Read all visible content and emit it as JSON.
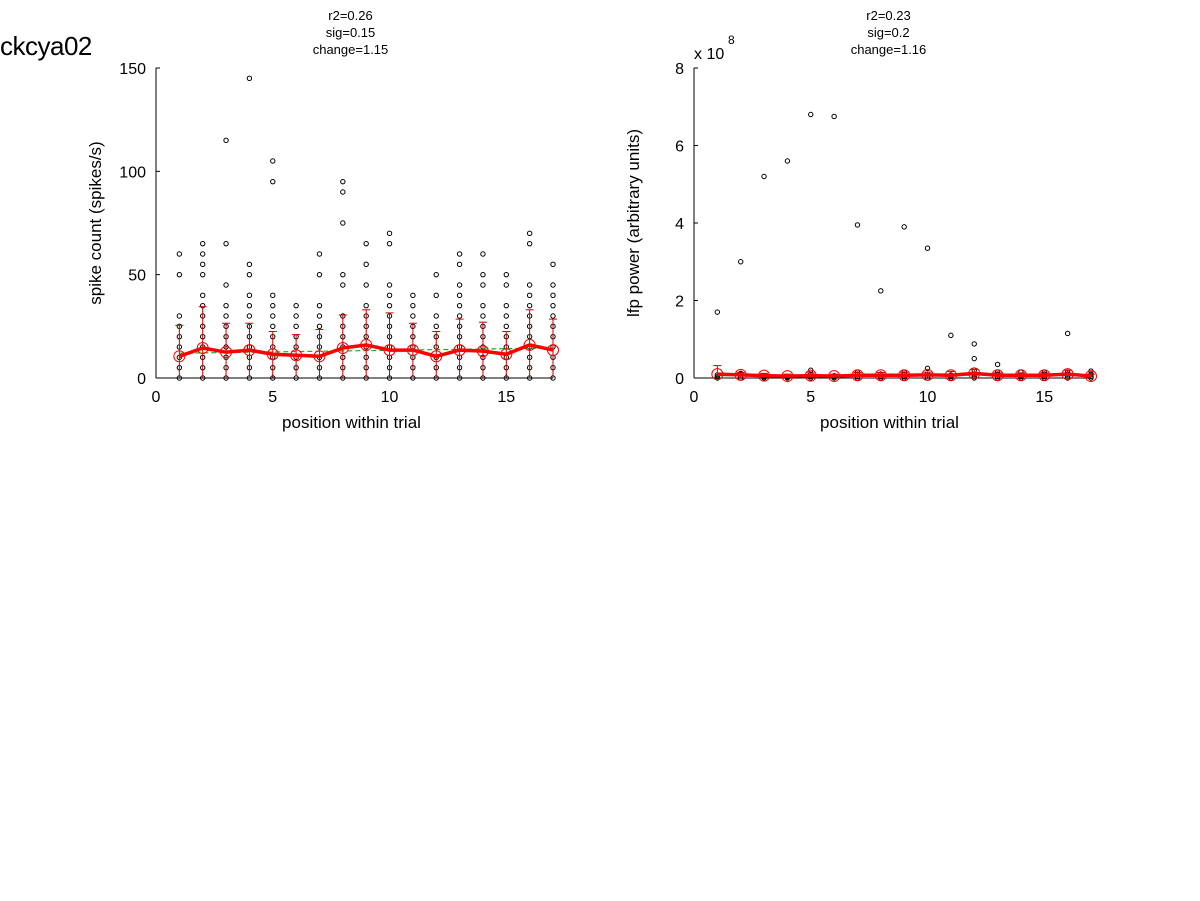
{
  "page": {
    "title": "ckcya02"
  },
  "chart_data": [
    {
      "type": "scatter",
      "stats": [
        "r2=0.26",
        "sig=0.15",
        "change=1.15"
      ],
      "xlabel": "position within trial",
      "ylabel": "spike count (spikes/s)",
      "xlim": [
        0,
        17
      ],
      "ylim": [
        0,
        150
      ],
      "xticks": [
        0,
        5,
        10,
        15
      ],
      "yticks": [
        0,
        50,
        100,
        150
      ],
      "exponent_label": "",
      "grid": false,
      "colors": {
        "points": "#000000",
        "mean_line": "#ff0000",
        "error_bars": "#cc0000",
        "fit_line": "#22aa22"
      },
      "mean": {
        "x": [
          1,
          2,
          3,
          4,
          5,
          6,
          7,
          8,
          9,
          10,
          11,
          12,
          13,
          14,
          15,
          16,
          17
        ],
        "y": [
          10.5,
          14.5,
          12.5,
          13.5,
          11.5,
          11,
          10.5,
          14.5,
          16,
          13.5,
          13.5,
          10.5,
          13.5,
          13,
          11.5,
          16,
          13.5
        ],
        "err": [
          15,
          20,
          14,
          13,
          11,
          10,
          13,
          16,
          17,
          18,
          13,
          12,
          15,
          14,
          11,
          17,
          15
        ]
      },
      "fit": {
        "x": [
          1,
          17
        ],
        "y": [
          12,
          14.5
        ]
      },
      "points": [
        [
          1,
          0
        ],
        [
          1,
          5
        ],
        [
          1,
          10
        ],
        [
          1,
          15
        ],
        [
          1,
          20
        ],
        [
          1,
          25
        ],
        [
          1,
          30
        ],
        [
          1,
          50
        ],
        [
          1,
          60
        ],
        [
          2,
          0
        ],
        [
          2,
          5
        ],
        [
          2,
          10
        ],
        [
          2,
          15
        ],
        [
          2,
          20
        ],
        [
          2,
          25
        ],
        [
          2,
          30
        ],
        [
          2,
          35
        ],
        [
          2,
          40
        ],
        [
          2,
          50
        ],
        [
          2,
          55
        ],
        [
          2,
          60
        ],
        [
          2,
          65
        ],
        [
          3,
          0
        ],
        [
          3,
          5
        ],
        [
          3,
          10
        ],
        [
          3,
          15
        ],
        [
          3,
          20
        ],
        [
          3,
          25
        ],
        [
          3,
          30
        ],
        [
          3,
          35
        ],
        [
          3,
          45
        ],
        [
          3,
          65
        ],
        [
          3,
          115
        ],
        [
          4,
          0
        ],
        [
          4,
          5
        ],
        [
          4,
          10
        ],
        [
          4,
          15
        ],
        [
          4,
          20
        ],
        [
          4,
          25
        ],
        [
          4,
          30
        ],
        [
          4,
          35
        ],
        [
          4,
          40
        ],
        [
          4,
          50
        ],
        [
          4,
          55
        ],
        [
          4,
          145
        ],
        [
          5,
          0
        ],
        [
          5,
          5
        ],
        [
          5,
          10
        ],
        [
          5,
          15
        ],
        [
          5,
          20
        ],
        [
          5,
          25
        ],
        [
          5,
          30
        ],
        [
          5,
          35
        ],
        [
          5,
          40
        ],
        [
          5,
          95
        ],
        [
          5,
          105
        ],
        [
          6,
          0
        ],
        [
          6,
          5
        ],
        [
          6,
          10
        ],
        [
          6,
          15
        ],
        [
          6,
          20
        ],
        [
          6,
          25
        ],
        [
          6,
          30
        ],
        [
          6,
          35
        ],
        [
          7,
          0
        ],
        [
          7,
          5
        ],
        [
          7,
          10
        ],
        [
          7,
          15
        ],
        [
          7,
          20
        ],
        [
          7,
          25
        ],
        [
          7,
          30
        ],
        [
          7,
          35
        ],
        [
          7,
          50
        ],
        [
          7,
          60
        ],
        [
          8,
          0
        ],
        [
          8,
          5
        ],
        [
          8,
          10
        ],
        [
          8,
          15
        ],
        [
          8,
          20
        ],
        [
          8,
          25
        ],
        [
          8,
          30
        ],
        [
          8,
          45
        ],
        [
          8,
          50
        ],
        [
          8,
          75
        ],
        [
          8,
          90
        ],
        [
          8,
          95
        ],
        [
          9,
          0
        ],
        [
          9,
          5
        ],
        [
          9,
          10
        ],
        [
          9,
          15
        ],
        [
          9,
          20
        ],
        [
          9,
          25
        ],
        [
          9,
          30
        ],
        [
          9,
          35
        ],
        [
          9,
          45
        ],
        [
          9,
          55
        ],
        [
          9,
          65
        ],
        [
          10,
          0
        ],
        [
          10,
          5
        ],
        [
          10,
          10
        ],
        [
          10,
          15
        ],
        [
          10,
          20
        ],
        [
          10,
          25
        ],
        [
          10,
          30
        ],
        [
          10,
          35
        ],
        [
          10,
          40
        ],
        [
          10,
          45
        ],
        [
          10,
          65
        ],
        [
          10,
          70
        ],
        [
          11,
          0
        ],
        [
          11,
          5
        ],
        [
          11,
          10
        ],
        [
          11,
          15
        ],
        [
          11,
          20
        ],
        [
          11,
          25
        ],
        [
          11,
          30
        ],
        [
          11,
          35
        ],
        [
          11,
          40
        ],
        [
          12,
          0
        ],
        [
          12,
          5
        ],
        [
          12,
          10
        ],
        [
          12,
          15
        ],
        [
          12,
          20
        ],
        [
          12,
          25
        ],
        [
          12,
          30
        ],
        [
          12,
          40
        ],
        [
          12,
          50
        ],
        [
          13,
          0
        ],
        [
          13,
          5
        ],
        [
          13,
          10
        ],
        [
          13,
          15
        ],
        [
          13,
          20
        ],
        [
          13,
          25
        ],
        [
          13,
          30
        ],
        [
          13,
          35
        ],
        [
          13,
          40
        ],
        [
          13,
          45
        ],
        [
          13,
          55
        ],
        [
          13,
          60
        ],
        [
          14,
          0
        ],
        [
          14,
          5
        ],
        [
          14,
          10
        ],
        [
          14,
          15
        ],
        [
          14,
          20
        ],
        [
          14,
          25
        ],
        [
          14,
          30
        ],
        [
          14,
          35
        ],
        [
          14,
          45
        ],
        [
          14,
          50
        ],
        [
          14,
          60
        ],
        [
          15,
          0
        ],
        [
          15,
          5
        ],
        [
          15,
          10
        ],
        [
          15,
          15
        ],
        [
          15,
          20
        ],
        [
          15,
          25
        ],
        [
          15,
          30
        ],
        [
          15,
          35
        ],
        [
          15,
          45
        ],
        [
          15,
          50
        ],
        [
          16,
          0
        ],
        [
          16,
          5
        ],
        [
          16,
          10
        ],
        [
          16,
          15
        ],
        [
          16,
          20
        ],
        [
          16,
          25
        ],
        [
          16,
          30
        ],
        [
          16,
          35
        ],
        [
          16,
          40
        ],
        [
          16,
          45
        ],
        [
          16,
          65
        ],
        [
          16,
          70
        ],
        [
          17,
          0
        ],
        [
          17,
          5
        ],
        [
          17,
          10
        ],
        [
          17,
          15
        ],
        [
          17,
          20
        ],
        [
          17,
          25
        ],
        [
          17,
          30
        ],
        [
          17,
          35
        ],
        [
          17,
          40
        ],
        [
          17,
          45
        ],
        [
          17,
          55
        ]
      ]
    },
    {
      "type": "scatter",
      "stats": [
        "r2=0.23",
        "sig=0.2",
        "change=1.16"
      ],
      "xlabel": "position within trial",
      "ylabel": "lfp power (arbitrary units)",
      "xlim": [
        0,
        17
      ],
      "ylim": [
        0,
        8
      ],
      "xticks": [
        0,
        5,
        10,
        15
      ],
      "yticks": [
        0,
        2,
        4,
        6,
        8
      ],
      "exponent_label": "x 10",
      "exponent_power": "8",
      "grid": false,
      "colors": {
        "points": "#000000",
        "mean_line": "#ff0000",
        "error_bars": "#cc0000",
        "fit_line": "#22aa22"
      },
      "mean": {
        "x": [
          1,
          2,
          3,
          4,
          5,
          6,
          7,
          8,
          9,
          10,
          11,
          12,
          13,
          14,
          15,
          16,
          17
        ],
        "y": [
          0.1,
          0.08,
          0.06,
          0.05,
          0.06,
          0.05,
          0.07,
          0.07,
          0.07,
          0.08,
          0.07,
          0.12,
          0.07,
          0.07,
          0.07,
          0.1,
          0.05
        ],
        "err": [
          0.22,
          0.06,
          0.06,
          0.05,
          0.07,
          0.05,
          0.07,
          0.07,
          0.07,
          0.07,
          0.1,
          0.1,
          0.06,
          0.06,
          0.06,
          0.1,
          0.05
        ]
      },
      "fit": {
        "x": [
          1,
          17
        ],
        "y": [
          0.06,
          0.08
        ]
      },
      "points": [
        [
          1,
          0
        ],
        [
          1,
          0.03
        ],
        [
          1,
          0.08
        ],
        [
          1,
          1.7
        ],
        [
          2,
          0
        ],
        [
          2,
          0.05
        ],
        [
          2,
          0.1
        ],
        [
          2,
          0.12
        ],
        [
          2,
          3.0
        ],
        [
          3,
          0
        ],
        [
          3,
          0.03
        ],
        [
          3,
          0.06
        ],
        [
          3,
          5.2
        ],
        [
          4,
          0
        ],
        [
          4,
          0.02
        ],
        [
          4,
          0.04
        ],
        [
          4,
          5.6
        ],
        [
          5,
          0
        ],
        [
          5,
          0.04
        ],
        [
          5,
          0.1
        ],
        [
          5,
          0.2
        ],
        [
          5,
          6.8
        ],
        [
          6,
          0
        ],
        [
          6,
          0.03
        ],
        [
          6,
          0.06
        ],
        [
          6,
          6.75
        ],
        [
          7,
          0
        ],
        [
          7,
          0.04
        ],
        [
          7,
          0.1
        ],
        [
          7,
          0.15
        ],
        [
          7,
          3.95
        ],
        [
          8,
          0
        ],
        [
          8,
          0.04
        ],
        [
          8,
          0.1
        ],
        [
          8,
          2.25
        ],
        [
          9,
          0
        ],
        [
          9,
          0.04
        ],
        [
          9,
          0.1
        ],
        [
          9,
          0.15
        ],
        [
          9,
          3.9
        ],
        [
          10,
          0
        ],
        [
          10,
          0.05
        ],
        [
          10,
          0.1
        ],
        [
          10,
          0.25
        ],
        [
          10,
          3.35
        ],
        [
          11,
          0
        ],
        [
          11,
          0.04
        ],
        [
          11,
          0.08
        ],
        [
          11,
          1.1
        ],
        [
          12,
          0
        ],
        [
          12,
          0.05
        ],
        [
          12,
          0.1
        ],
        [
          12,
          0.2
        ],
        [
          12,
          0.5
        ],
        [
          12,
          0.88
        ],
        [
          13,
          0
        ],
        [
          13,
          0.04
        ],
        [
          13,
          0.1
        ],
        [
          13,
          0.15
        ],
        [
          13,
          0.35
        ],
        [
          14,
          0
        ],
        [
          14,
          0.04
        ],
        [
          14,
          0.08
        ],
        [
          14,
          0.15
        ],
        [
          15,
          0
        ],
        [
          15,
          0.04
        ],
        [
          15,
          0.1
        ],
        [
          15,
          0.15
        ],
        [
          16,
          0
        ],
        [
          16,
          0.05
        ],
        [
          16,
          0.1
        ],
        [
          16,
          0.15
        ],
        [
          16,
          1.15
        ],
        [
          17,
          0
        ],
        [
          17,
          0.04
        ],
        [
          17,
          0.1
        ],
        [
          17,
          0.18
        ]
      ]
    }
  ]
}
